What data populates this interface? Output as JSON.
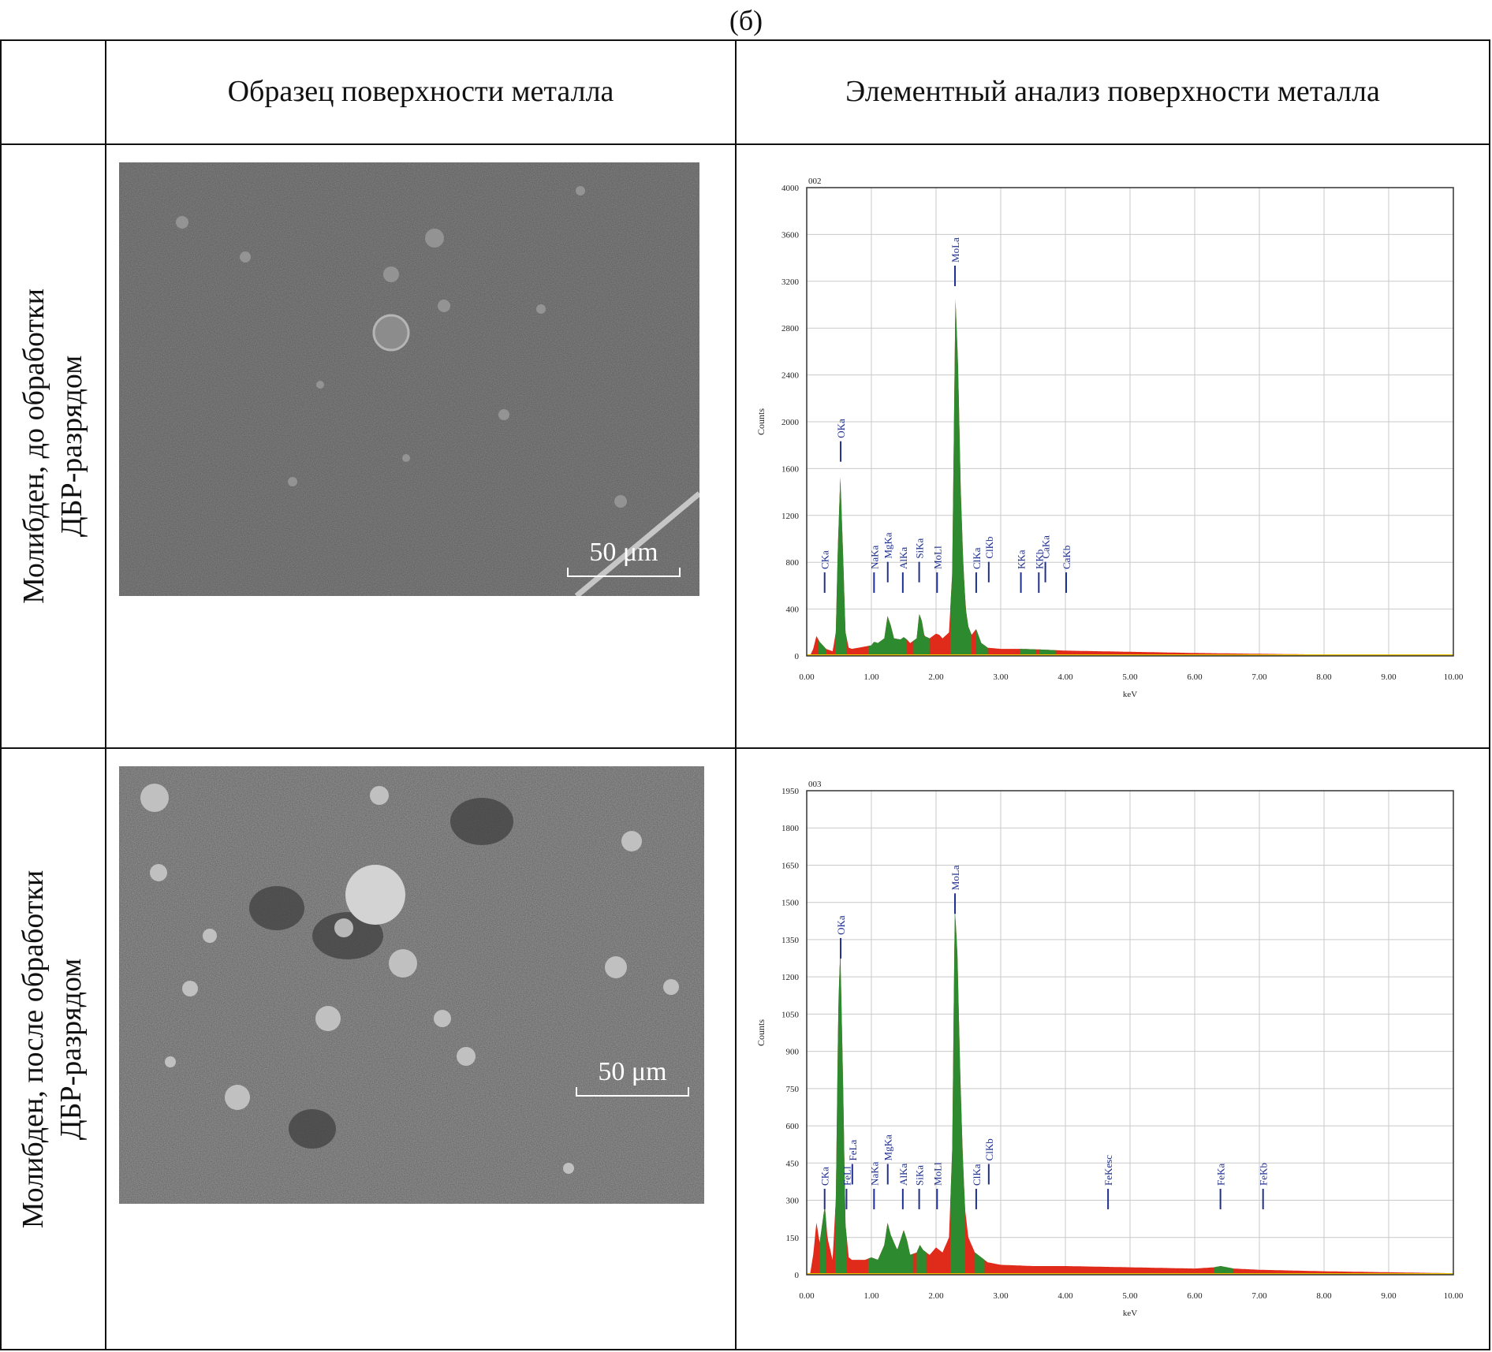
{
  "figure": {
    "caption": "(б)",
    "columns": [
      "",
      "Образец поверхности металла",
      "Элементный анализ поверхности металла"
    ],
    "rows": [
      {
        "label_lines": [
          "Молибден, до обработки",
          "ДБР-разрядом"
        ],
        "scale_bar": "50 μm"
      },
      {
        "label_lines": [
          "Молибден, после обработки",
          "ДБР-разрядом"
        ],
        "scale_bar": "50 μm"
      }
    ]
  },
  "colors": {
    "spectrum_fill": "#e02a1a",
    "peak_fill": "#2e8a2e",
    "marker": "#1f2f8f",
    "baseline": "#f0c000",
    "sem_bg": "#5b5b5b"
  },
  "chart_data": [
    {
      "type": "area",
      "id_label": "002",
      "xlabel": "keV",
      "ylabel": "Counts",
      "xlim": [
        0,
        10
      ],
      "ylim": [
        0,
        4000
      ],
      "x_ticks": [
        "0.00",
        "1.00",
        "2.00",
        "3.00",
        "4.00",
        "5.00",
        "6.00",
        "7.00",
        "8.00",
        "9.00",
        "10.00"
      ],
      "y_ticks": [
        "0",
        "400",
        "800",
        "1200",
        "1600",
        "2000",
        "2400",
        "2800",
        "3200",
        "3600",
        "4000"
      ],
      "grid": true,
      "spectrum": [
        [
          0.05,
          0
        ],
        [
          0.1,
          60
        ],
        [
          0.15,
          170
        ],
        [
          0.2,
          120
        ],
        [
          0.25,
          90
        ],
        [
          0.3,
          60
        ],
        [
          0.35,
          50
        ],
        [
          0.4,
          40
        ],
        [
          0.45,
          200
        ],
        [
          0.48,
          900
        ],
        [
          0.52,
          1540
        ],
        [
          0.56,
          900
        ],
        [
          0.6,
          200
        ],
        [
          0.65,
          70
        ],
        [
          0.7,
          60
        ],
        [
          0.8,
          70
        ],
        [
          0.9,
          80
        ],
        [
          1.0,
          90
        ],
        [
          1.04,
          120
        ],
        [
          1.1,
          110
        ],
        [
          1.2,
          150
        ],
        [
          1.25,
          340
        ],
        [
          1.3,
          260
        ],
        [
          1.35,
          150
        ],
        [
          1.45,
          140
        ],
        [
          1.5,
          160
        ],
        [
          1.55,
          140
        ],
        [
          1.6,
          110
        ],
        [
          1.7,
          150
        ],
        [
          1.74,
          360
        ],
        [
          1.78,
          300
        ],
        [
          1.82,
          170
        ],
        [
          1.9,
          150
        ],
        [
          2.0,
          190
        ],
        [
          2.05,
          180
        ],
        [
          2.1,
          150
        ],
        [
          2.2,
          200
        ],
        [
          2.25,
          700
        ],
        [
          2.3,
          3050
        ],
        [
          2.34,
          2500
        ],
        [
          2.38,
          1450
        ],
        [
          2.42,
          800
        ],
        [
          2.46,
          400
        ],
        [
          2.5,
          250
        ],
        [
          2.55,
          180
        ],
        [
          2.62,
          230
        ],
        [
          2.7,
          110
        ],
        [
          2.8,
          70
        ],
        [
          3.0,
          60
        ],
        [
          3.3,
          60
        ],
        [
          3.6,
          55
        ],
        [
          3.8,
          50
        ],
        [
          4.0,
          45
        ],
        [
          5.0,
          35
        ],
        [
          6.0,
          25
        ],
        [
          7.0,
          18
        ],
        [
          8.0,
          12
        ],
        [
          9.0,
          8
        ],
        [
          10.0,
          5
        ]
      ],
      "green_regions": [
        [
          0.18,
          0.3
        ],
        [
          0.44,
          0.62
        ],
        [
          0.95,
          1.55
        ],
        [
          1.65,
          1.9
        ],
        [
          2.22,
          2.55
        ],
        [
          2.62,
          2.8
        ],
        [
          3.3,
          3.55
        ],
        [
          3.6,
          3.85
        ]
      ],
      "peaks": [
        {
          "label": "CKa",
          "x": 0.277,
          "y": 700
        },
        {
          "label": "OKa",
          "x": 0.525,
          "y": 1820
        },
        {
          "label": "NaKa",
          "x": 1.041,
          "y": 700
        },
        {
          "label": "MgKa",
          "x": 1.253,
          "y": 790
        },
        {
          "label": "AlKa",
          "x": 1.486,
          "y": 700
        },
        {
          "label": "SiKa",
          "x": 1.739,
          "y": 790
        },
        {
          "label": "MoLl",
          "x": 2.016,
          "y": 700
        },
        {
          "label": "MoLa",
          "x": 2.293,
          "y": 3320
        },
        {
          "label": "ClKa",
          "x": 2.621,
          "y": 700
        },
        {
          "label": "ClKb",
          "x": 2.815,
          "y": 790
        },
        {
          "label": "KKa",
          "x": 3.312,
          "y": 700
        },
        {
          "label": "KKb",
          "x": 3.589,
          "y": 700
        },
        {
          "label": "CaKa",
          "x": 3.69,
          "y": 790
        },
        {
          "label": "CaKb",
          "x": 4.012,
          "y": 700
        }
      ]
    },
    {
      "type": "area",
      "id_label": "003",
      "xlabel": "keV",
      "ylabel": "Counts",
      "xlim": [
        0,
        10
      ],
      "ylim": [
        0,
        1950
      ],
      "x_ticks": [
        "0.00",
        "1.00",
        "2.00",
        "3.00",
        "4.00",
        "5.00",
        "6.00",
        "7.00",
        "8.00",
        "9.00",
        "10.00"
      ],
      "y_ticks": [
        "0",
        "150",
        "300",
        "450",
        "600",
        "750",
        "900",
        "1050",
        "1200",
        "1350",
        "1500",
        "1650",
        "1800",
        "1950"
      ],
      "grid": true,
      "spectrum": [
        [
          0.05,
          0
        ],
        [
          0.1,
          80
        ],
        [
          0.15,
          210
        ],
        [
          0.2,
          130
        ],
        [
          0.28,
          280
        ],
        [
          0.32,
          150
        ],
        [
          0.4,
          60
        ],
        [
          0.45,
          300
        ],
        [
          0.49,
          1100
        ],
        [
          0.52,
          1310
        ],
        [
          0.56,
          800
        ],
        [
          0.6,
          200
        ],
        [
          0.65,
          70
        ],
        [
          0.7,
          60
        ],
        [
          0.8,
          60
        ],
        [
          0.9,
          60
        ],
        [
          1.0,
          70
        ],
        [
          1.1,
          60
        ],
        [
          1.2,
          120
        ],
        [
          1.25,
          210
        ],
        [
          1.3,
          160
        ],
        [
          1.4,
          100
        ],
        [
          1.5,
          180
        ],
        [
          1.55,
          140
        ],
        [
          1.6,
          80
        ],
        [
          1.7,
          90
        ],
        [
          1.75,
          120
        ],
        [
          1.8,
          100
        ],
        [
          1.9,
          80
        ],
        [
          2.0,
          110
        ],
        [
          2.1,
          90
        ],
        [
          2.2,
          150
        ],
        [
          2.25,
          500
        ],
        [
          2.29,
          1480
        ],
        [
          2.33,
          1300
        ],
        [
          2.37,
          850
        ],
        [
          2.41,
          500
        ],
        [
          2.45,
          260
        ],
        [
          2.5,
          150
        ],
        [
          2.6,
          90
        ],
        [
          2.7,
          70
        ],
        [
          2.8,
          50
        ],
        [
          3.0,
          40
        ],
        [
          3.5,
          35
        ],
        [
          4.0,
          35
        ],
        [
          5.0,
          30
        ],
        [
          6.0,
          25
        ],
        [
          6.3,
          30
        ],
        [
          6.4,
          35
        ],
        [
          6.6,
          25
        ],
        [
          7.0,
          20
        ],
        [
          8.0,
          14
        ],
        [
          9.0,
          10
        ],
        [
          10.0,
          6
        ]
      ],
      "green_regions": [
        [
          0.2,
          0.3
        ],
        [
          0.44,
          0.62
        ],
        [
          0.95,
          1.65
        ],
        [
          1.7,
          1.85
        ],
        [
          2.22,
          2.45
        ],
        [
          2.6,
          2.75
        ],
        [
          6.3,
          6.6
        ]
      ],
      "peaks": [
        {
          "label": "CKa",
          "x": 0.277,
          "y": 340
        },
        {
          "label": "FeLl",
          "x": 0.615,
          "y": 340
        },
        {
          "label": "FeLa",
          "x": 0.705,
          "y": 440
        },
        {
          "label": "NaKa",
          "x": 1.041,
          "y": 340
        },
        {
          "label": "MgKa",
          "x": 1.253,
          "y": 440
        },
        {
          "label": "AlKa",
          "x": 1.486,
          "y": 340
        },
        {
          "label": "SiKa",
          "x": 1.739,
          "y": 340
        },
        {
          "label": "MoLl",
          "x": 2.016,
          "y": 340
        },
        {
          "label": "MoLa",
          "x": 2.293,
          "y": 1530
        },
        {
          "label": "OKa",
          "x": 0.525,
          "y": 1350
        },
        {
          "label": "ClKa",
          "x": 2.621,
          "y": 340
        },
        {
          "label": "ClKb",
          "x": 2.815,
          "y": 440
        },
        {
          "label": "FeKesc",
          "x": 4.66,
          "y": 340
        },
        {
          "label": "FeKa",
          "x": 6.398,
          "y": 340
        },
        {
          "label": "FeKb",
          "x": 7.057,
          "y": 340
        }
      ]
    }
  ]
}
